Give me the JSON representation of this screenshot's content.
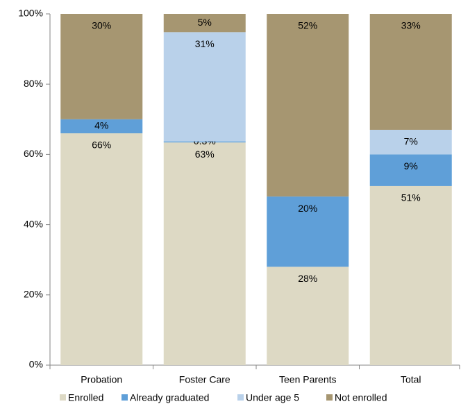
{
  "chart_data": {
    "type": "stacked_bar",
    "categories": [
      "Probation",
      "Foster Care",
      "Teen Parents",
      "Total"
    ],
    "series": [
      {
        "name": "Enrolled",
        "color": "#ddd9c4",
        "values": [
          66,
          63.4,
          28,
          51
        ],
        "value_labels": [
          "66%",
          "63%",
          "28%",
          "51%"
        ]
      },
      {
        "name": "Already graduated",
        "color": "#5f9fd8",
        "values": [
          4,
          0.3,
          20,
          9
        ],
        "value_labels": [
          "4%",
          "0.3%",
          "20%",
          "9%"
        ]
      },
      {
        "name": "Under age 5",
        "color": "#b9d1ea",
        "values": [
          0,
          31.1,
          0,
          7
        ],
        "value_labels": [
          null,
          "31%",
          null,
          "7%"
        ]
      },
      {
        "name": "Not enrolled",
        "color": "#a69671",
        "values": [
          30,
          5.2,
          52,
          33
        ],
        "value_labels": [
          "30%",
          "5%",
          "52%",
          "33%"
        ]
      }
    ],
    "ylim": [
      0,
      100
    ],
    "yticks": [
      {
        "value": 0,
        "label": "0%"
      },
      {
        "value": 20,
        "label": "20%"
      },
      {
        "value": 40,
        "label": "40%"
      },
      {
        "value": 60,
        "label": "60%"
      },
      {
        "value": 80,
        "label": "80%"
      },
      {
        "value": 100,
        "label": "100%"
      }
    ],
    "legend": "bottom"
  }
}
